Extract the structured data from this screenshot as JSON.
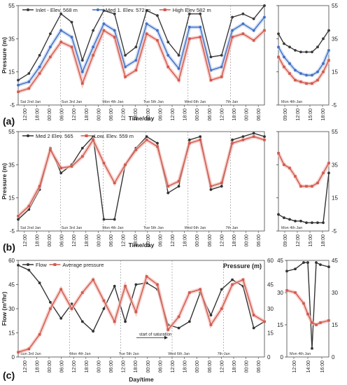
{
  "chart_data": [
    {
      "panel": "(a)",
      "type": "line",
      "xlabel": "Time/day",
      "ylabel": "Pressure (m)",
      "ylim": [
        -5,
        55
      ],
      "yticks": [
        "-5",
        "15",
        "35",
        "55"
      ],
      "grid": "vertical dashed at day boundaries",
      "legend": "top",
      "x_ticks": [
        "12:00",
        "18:00",
        "00:00",
        "06:00",
        "12:00",
        "18:00",
        "00:00",
        "06:00",
        "12:00",
        "18:00",
        "00:00",
        "06:00",
        "12:00",
        "18:00",
        "00:00",
        "06:00",
        "12:00",
        "18:00",
        "00:00",
        "06:00"
      ],
      "day_labels": [
        "Sat 2nd Jan",
        "Sun 3rd Jan",
        "Mon 4th Jan",
        "Tue 5th Jan",
        "Wed 6th Jan",
        "7th Jan"
      ],
      "x": [
        12,
        18,
        24,
        30,
        36,
        42,
        48,
        54,
        60,
        66,
        72,
        78,
        84,
        90,
        96,
        102,
        108,
        114,
        120,
        126,
        132,
        138,
        144,
        150
      ],
      "series": [
        {
          "name": "Inlet - Elev. 568 m",
          "color": "#3a3a3a",
          "values": [
            10,
            14,
            25,
            38,
            50,
            45,
            22,
            40,
            52,
            50,
            25,
            30,
            52,
            49,
            33,
            25,
            50,
            50,
            24,
            25,
            48,
            50,
            47,
            55
          ]
        },
        {
          "name": "Med 1. Elev. 572 m",
          "color": "#3f6fc4",
          "values": [
            7,
            9,
            18,
            30,
            40,
            36,
            15,
            30,
            44,
            40,
            18,
            22,
            44,
            40,
            25,
            17,
            42,
            42,
            16,
            18,
            40,
            44,
            40,
            48
          ]
        },
        {
          "name": "High Elev 582 m",
          "color": "#d05a4e",
          "values": [
            3,
            5,
            14,
            24,
            33,
            30,
            8,
            25,
            40,
            36,
            12,
            16,
            38,
            34,
            18,
            10,
            35,
            36,
            10,
            12,
            36,
            38,
            34,
            40
          ]
        }
      ]
    },
    {
      "panel": "(a) inset",
      "type": "line",
      "ylim": [
        -5,
        55
      ],
      "yticks": [
        "-5",
        "15",
        "35",
        "55"
      ],
      "x_ticks": [
        "09:00",
        "12:00",
        "15:00",
        "18:00"
      ],
      "day_labels": [
        "Mon 4th Jan"
      ],
      "x": [
        9,
        10,
        11,
        12,
        13,
        14,
        15,
        16,
        17,
        18
      ],
      "series": [
        {
          "name": "Inlet - Elev. 568 m",
          "color": "#3a3a3a",
          "values": [
            38,
            32,
            30,
            28,
            27,
            27,
            27,
            30,
            35,
            40
          ]
        },
        {
          "name": "Med 1. Elev. 572 m",
          "color": "#3f6fc4",
          "values": [
            30,
            24,
            20,
            16,
            14,
            13,
            13,
            15,
            20,
            28
          ]
        },
        {
          "name": "High Elev 582 m",
          "color": "#d05a4e",
          "values": [
            24,
            18,
            14,
            10,
            9,
            8,
            8,
            10,
            15,
            22
          ]
        }
      ]
    },
    {
      "panel": "(b)",
      "type": "line",
      "xlabel": "Time/day",
      "ylabel": "Pressure (m)",
      "ylim": [
        -5,
        55
      ],
      "yticks": [
        "-5",
        "15",
        "35",
        "55"
      ],
      "grid": "vertical dashed at day boundaries",
      "legend": "top",
      "x_ticks": [
        "12:00",
        "18:00",
        "00:00",
        "06:00",
        "12:00",
        "18:00",
        "00:00",
        "06:00",
        "12:00",
        "18:00",
        "00:00",
        "06:00",
        "12:00",
        "18:00",
        "00:00",
        "06:00",
        "12:00",
        "18:00",
        "00:00",
        "06:00"
      ],
      "day_labels": [
        "Sat 2nd Jan",
        "Sun 3rd Jan",
        "Mon 4th Jan",
        "Tue 5th Jan",
        "Wed 6th Jan",
        "7th Jan"
      ],
      "x": [
        12,
        18,
        24,
        30,
        36,
        42,
        48,
        54,
        60,
        66,
        72,
        78,
        84,
        90,
        96,
        102,
        108,
        114,
        120,
        126,
        132,
        138,
        144,
        150
      ],
      "series": [
        {
          "name": "Med 2 Elev. 565",
          "color": "#333333",
          "values": [
            2,
            8,
            20,
            45,
            30,
            35,
            45,
            52,
            2,
            2,
            35,
            45,
            52,
            48,
            18,
            22,
            50,
            52,
            20,
            22,
            50,
            52,
            54,
            52
          ]
        },
        {
          "name": "Low. Elev. 559 m",
          "color": "#d05a4e",
          "values": [
            4,
            10,
            22,
            44,
            33,
            34,
            40,
            50,
            36,
            24,
            35,
            44,
            50,
            46,
            22,
            25,
            48,
            50,
            22,
            24,
            48,
            50,
            52,
            50
          ]
        }
      ]
    },
    {
      "panel": "(b) inset",
      "type": "line",
      "ylim": [
        -5,
        55
      ],
      "yticks": [
        "-5",
        "15",
        "35",
        "55"
      ],
      "x_ticks": [
        "09:00",
        "12:00",
        "15:00",
        "18:00"
      ],
      "day_labels": [
        "Mon 4th Jan"
      ],
      "x": [
        9,
        10,
        11,
        12,
        13,
        14,
        15,
        16,
        17,
        18
      ],
      "series": [
        {
          "name": "Med 2 Elev. 565",
          "color": "#333333",
          "values": [
            5,
            3,
            2,
            1,
            1,
            0,
            0,
            0,
            0,
            30
          ]
        },
        {
          "name": "Low. Elev. 559 m",
          "color": "#d05a4e",
          "values": [
            42,
            35,
            33,
            28,
            22,
            22,
            22,
            24,
            30,
            36
          ]
        }
      ]
    },
    {
      "panel": "(c)",
      "type": "line",
      "xlabel": "Day/time",
      "ylabel": "Flow (m³/hr)",
      "ylabel_right": "Pressure (m)",
      "ylim": [
        0,
        60
      ],
      "ylim_right": [
        0,
        60
      ],
      "yticks": [
        "0",
        "15",
        "30",
        "45",
        "60"
      ],
      "grid": "vertical dashed at day boundaries",
      "legend": "top",
      "annotation": "start of saturation",
      "x_ticks": [
        "12:00",
        "18:00",
        "00:00",
        "06:00",
        "12:00",
        "18:00",
        "00:00",
        "06:00",
        "12:00",
        "18:00",
        "00:00",
        "06:00",
        "12:00",
        "18:00",
        "00:00",
        "06:00",
        "12:00",
        "18:00",
        "00:00",
        "06:00"
      ],
      "day_labels": [
        "Sun 3rd Jan",
        "Mon 4th Jan",
        "Tue 5th Jan",
        "Wed 6th Jan",
        "7th Jan"
      ],
      "x": [
        12,
        18,
        24,
        30,
        36,
        42,
        48,
        54,
        60,
        66,
        72,
        78,
        84,
        90,
        96,
        102,
        108,
        114,
        120,
        126,
        132,
        138,
        144,
        150
      ],
      "series": [
        {
          "name": "Flow",
          "color": "#333333",
          "values": [
            57,
            54,
            46,
            34,
            24,
            33,
            22,
            16,
            30,
            44,
            22,
            45,
            46,
            42,
            20,
            18,
            22,
            40,
            26,
            42,
            48,
            44,
            18,
            22
          ]
        },
        {
          "name": "Average pressure",
          "color": "#d05a4e",
          "values": [
            3,
            5,
            14,
            30,
            42,
            30,
            40,
            48,
            35,
            22,
            44,
            28,
            50,
            45,
            17,
            25,
            40,
            42,
            20,
            30,
            45,
            48,
            26,
            22
          ]
        }
      ]
    },
    {
      "panel": "(c) inset",
      "type": "line",
      "ylim": [
        0,
        45
      ],
      "yticks": [
        "0",
        "15",
        "30",
        "45"
      ],
      "x_ticks": [
        "12:00",
        "14:00",
        "16:00"
      ],
      "day_labels": [
        "Mon 4th Jan"
      ],
      "x": [
        11,
        12,
        13,
        13.5,
        14,
        14.5,
        15,
        16
      ],
      "series": [
        {
          "name": "Flow",
          "color": "#333333",
          "values": [
            40,
            41,
            44,
            44,
            4,
            44,
            43,
            42
          ]
        },
        {
          "name": "Average pressure",
          "color": "#d05a4e",
          "values": [
            31,
            30,
            25,
            20,
            16,
            15,
            16,
            17
          ]
        }
      ]
    }
  ],
  "panel_labels": [
    "(a)",
    "(b)",
    "(c)"
  ]
}
